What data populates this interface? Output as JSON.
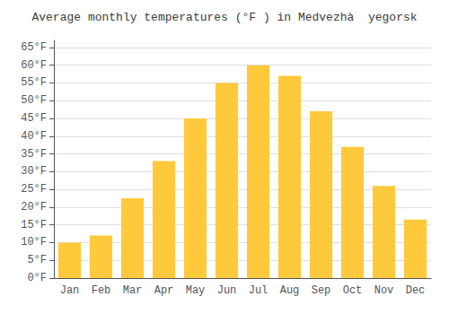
{
  "chart_data": {
    "type": "bar",
    "title": "Average monthly temperatures (°F ) in Medvezhà  yegorsk",
    "categories": [
      "Jan",
      "Feb",
      "Mar",
      "Apr",
      "May",
      "Jun",
      "Jul",
      "Aug",
      "Sep",
      "Oct",
      "Nov",
      "Dec"
    ],
    "values": [
      10,
      12,
      22.5,
      33,
      45,
      55,
      60,
      57,
      47,
      37,
      26,
      16.5
    ],
    "color": "#FFC93C",
    "ylim": [
      0,
      67
    ],
    "yticks": [
      {
        "value": 0,
        "label": "0°F"
      },
      {
        "value": 5,
        "label": "5°F"
      },
      {
        "value": 10,
        "label": "10°F"
      },
      {
        "value": 15,
        "label": "15°F"
      },
      {
        "value": 20,
        "label": "20°F"
      },
      {
        "value": 25,
        "label": "25°F"
      },
      {
        "value": 30,
        "label": "30°F"
      },
      {
        "value": 35,
        "label": "35°F"
      },
      {
        "value": 40,
        "label": "40°F"
      },
      {
        "value": 45,
        "label": "45°F"
      },
      {
        "value": 50,
        "label": "50°F"
      },
      {
        "value": 55,
        "label": "55°F"
      },
      {
        "value": 60,
        "label": "60°F"
      },
      {
        "value": 65,
        "label": "65°F"
      }
    ],
    "grid": true
  }
}
